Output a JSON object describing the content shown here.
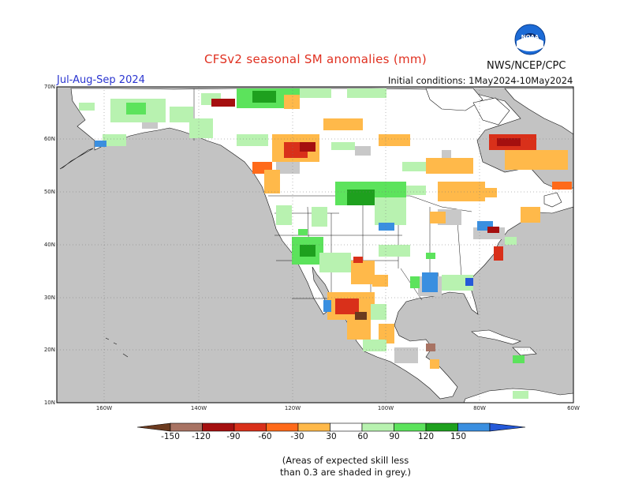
{
  "header": {
    "title": "CFSv2 seasonal SM anomalies (mm)",
    "season": "Jul-Aug-Sep 2024",
    "initial_conditions": "Initial conditions: 1May2024-10May2024",
    "agency": "NWS/NCEP/CPC",
    "logo_text": "NOAA",
    "logo_icon": "noaa-logo-icon"
  },
  "axes": {
    "lat_labels": [
      "70N",
      "60N",
      "50N",
      "40N",
      "30N",
      "20N",
      "10N"
    ],
    "lon_labels": [
      "160W",
      "140W",
      "120W",
      "100W",
      "80W",
      "60W"
    ]
  },
  "legend": {
    "labels": [
      "-150",
      "-120",
      "-90",
      "-60",
      "-30",
      "30",
      "60",
      "90",
      "120",
      "150"
    ],
    "colors": [
      "#6b3a1f",
      "#a87363",
      "#a50f0f",
      "#d9301a",
      "#ff6a1a",
      "#ffb94a",
      "#ffffff",
      "#b8f2b0",
      "#5ce35c",
      "#1ea01e",
      "#3a8fe0",
      "#2559d8"
    ]
  },
  "note": {
    "line1": "(Areas of expected skill less",
    "line2": "than 0.3 are shaded in grey.)"
  },
  "colors": {
    "ocean": "#c3c3c3",
    "land": "#ffffff",
    "skill_grey": "#c8c8c8",
    "title": "#e03020",
    "season": "#2a35d0"
  }
}
